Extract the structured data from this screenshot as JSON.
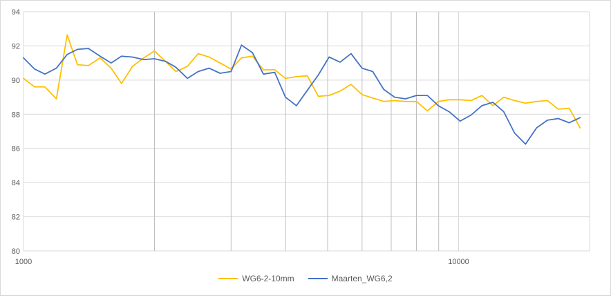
{
  "chart_data": {
    "type": "line",
    "title": "",
    "xlabel": "",
    "ylabel": "",
    "x_scale": "log",
    "xlim": [
      1000,
      20000
    ],
    "ylim": [
      80,
      94
    ],
    "y_ticks": [
      80,
      82,
      84,
      86,
      88,
      90,
      92,
      94
    ],
    "x_tick_labels": [
      {
        "value": 1000,
        "label": "1000"
      },
      {
        "value": 10000,
        "label": "10000"
      }
    ],
    "x_minor_gridlines": [
      2000,
      3000,
      4000,
      5000,
      6000,
      7000,
      8000,
      9000
    ],
    "grid": true,
    "legend_position": "bottom",
    "x": [
      1000,
      1060,
      1120,
      1190,
      1260,
      1330,
      1410,
      1500,
      1590,
      1680,
      1780,
      1890,
      2000,
      2120,
      2240,
      2380,
      2520,
      2670,
      2830,
      3000,
      3170,
      3360,
      3560,
      3780,
      4000,
      4240,
      4490,
      4760,
      5040,
      5340,
      5660,
      6000,
      6350,
      6730,
      7130,
      7550,
      8000,
      8480,
      8980,
      9510,
      10080,
      10680,
      11310,
      11990,
      12700,
      13450,
      14250,
      15100,
      16000,
      16950,
      17960,
      19030
    ],
    "series": [
      {
        "name": "WG6-2-10mm",
        "color": "#FFC000",
        "values": [
          90.1,
          89.6,
          89.6,
          88.9,
          92.65,
          90.9,
          90.85,
          91.3,
          90.7,
          89.8,
          90.8,
          91.3,
          91.7,
          91.1,
          90.5,
          90.8,
          91.55,
          91.35,
          91.0,
          90.65,
          91.3,
          91.4,
          90.6,
          90.6,
          90.1,
          90.2,
          90.25,
          89.05,
          89.1,
          89.35,
          89.75,
          89.15,
          88.95,
          88.75,
          88.8,
          88.75,
          88.75,
          88.2,
          88.75,
          88.85,
          88.85,
          88.8,
          89.1,
          88.5,
          89.0,
          88.8,
          88.65,
          88.75,
          88.8,
          88.3,
          88.35,
          87.2
        ]
      },
      {
        "name": "Maarten_WG6,2",
        "color": "#4472C4",
        "values": [
          91.3,
          90.65,
          90.35,
          90.7,
          91.5,
          91.8,
          91.85,
          91.4,
          91.0,
          91.4,
          91.35,
          91.2,
          91.25,
          91.1,
          90.75,
          90.1,
          90.5,
          90.7,
          90.4,
          90.5,
          92.05,
          91.6,
          90.35,
          90.45,
          89.0,
          88.5,
          89.4,
          90.3,
          91.35,
          91.05,
          91.55,
          90.7,
          90.5,
          89.45,
          89.0,
          88.9,
          89.1,
          89.1,
          88.5,
          88.15,
          87.6,
          87.95,
          88.5,
          88.7,
          88.15,
          86.9,
          86.25,
          87.2,
          87.65,
          87.75,
          87.5,
          87.8
        ]
      }
    ]
  }
}
